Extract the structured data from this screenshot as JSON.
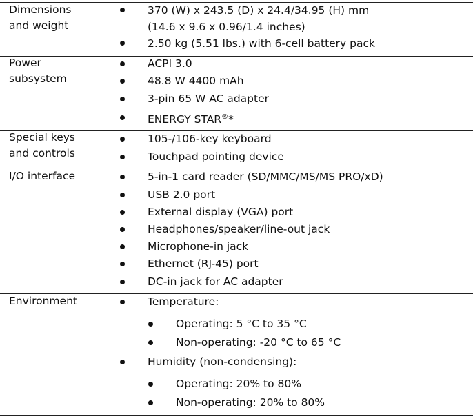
{
  "rows": [
    {
      "label": "Dimensions\nand weight",
      "items": [
        "370 (W) x 243.5 (D) x 24.4/34.95 (H) mm",
        "(14.6 x 9.6 x 0.96/1.4 inches)",
        "2.50 kg (5.51 lbs.) with 6-cell battery pack"
      ]
    },
    {
      "label": "Power\nsubsystem",
      "items": [
        "ACPI 3.0",
        "48.8 W 4400 mAh",
        "3-pin 65 W AC adapter",
        "ENERGY STAR",
        "®",
        "*"
      ]
    },
    {
      "label": "Special keys\nand controls",
      "items": [
        "105-/106-key keyboard",
        "Touchpad pointing device"
      ]
    },
    {
      "label": "I/O interface",
      "items": [
        "5-in-1 card reader (SD/MMC/MS/MS PRO/xD)",
        "USB 2.0 port",
        "External display (VGA) port",
        "Headphones/speaker/line-out jack",
        "Microphone-in jack",
        "Ethernet (RJ-45) port",
        "DC-in jack for AC adapter"
      ]
    },
    {
      "label": "Environment",
      "items": [
        "Temperature:",
        "Operating: 5 °C to 35 °C",
        "Non-operating: -20 °C to 65 °C",
        "Humidity (non-condensing):",
        "Operating: 20% to 80%",
        "Non-operating: 20% to 80%"
      ]
    }
  ]
}
